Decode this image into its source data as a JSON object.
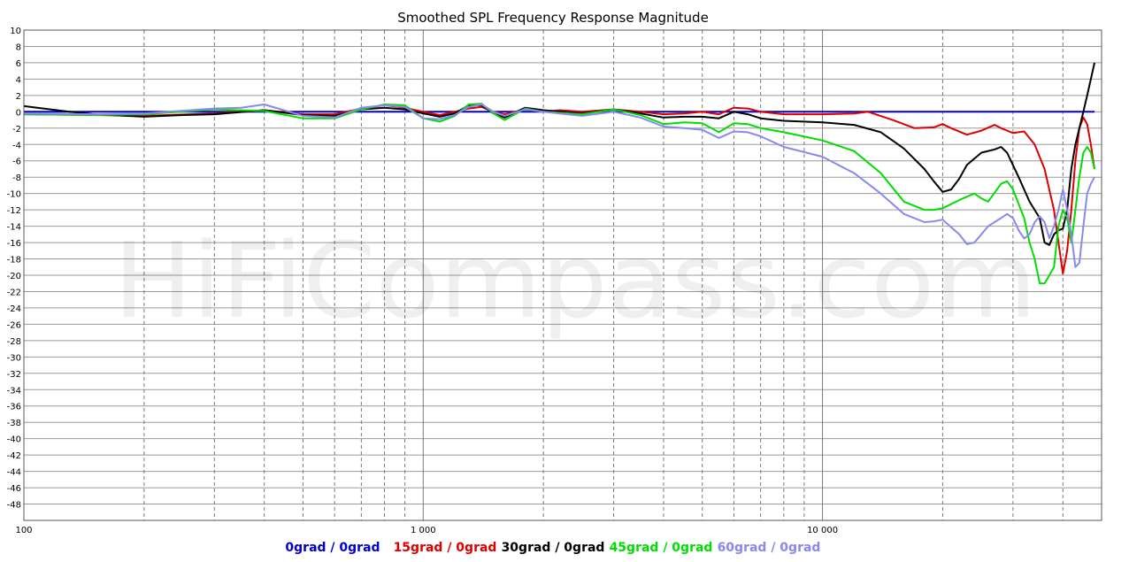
{
  "chart_data": {
    "type": "line",
    "title": "Smoothed SPL Frequency Response Magnitude",
    "watermark": "HiFiCompass.com",
    "x_scale": "log",
    "xlim": [
      100,
      50000
    ],
    "ylim": [
      -50,
      10
    ],
    "ytick_values": [
      10,
      8,
      6,
      4,
      2,
      0,
      -2,
      -4,
      -6,
      -8,
      -10,
      -12,
      -14,
      -16,
      -18,
      -20,
      -22,
      -24,
      -26,
      -28,
      -30,
      -32,
      -34,
      -36,
      -38,
      -40,
      -42,
      -44,
      -46,
      -48
    ],
    "ytick_labels": [
      "10",
      "8",
      "6",
      "4",
      "2",
      "0",
      "-2",
      "-4",
      "-6",
      "-8",
      "-10",
      "-12",
      "-14",
      "-16",
      "-18",
      "-20",
      "-22",
      "-24",
      "-26",
      "-28",
      "-30",
      "-32",
      "-34",
      "-36",
      "-38",
      "-40",
      "-42",
      "-44",
      "-46",
      "-48"
    ],
    "xtick_major": [
      {
        "value": 100,
        "label": "100"
      },
      {
        "value": 1000,
        "label": "1 000"
      },
      {
        "value": 10000,
        "label": "10 000"
      }
    ],
    "grid": true,
    "legend_position": "bottom",
    "series": [
      {
        "name": "0grad / 0grad",
        "color": "#0000cc",
        "points": [
          [
            100,
            0
          ],
          [
            48000,
            0
          ]
        ]
      },
      {
        "name": "15grad / 0grad",
        "color": "#dd0000",
        "points": [
          [
            100,
            -0.3
          ],
          [
            150,
            -0.4
          ],
          [
            200,
            -0.5
          ],
          [
            300,
            -0.2
          ],
          [
            400,
            0.2
          ],
          [
            500,
            -0.3
          ],
          [
            600,
            -0.3
          ],
          [
            700,
            0.4
          ],
          [
            800,
            0.8
          ],
          [
            900,
            0.5
          ],
          [
            1000,
            0
          ],
          [
            1100,
            -0.4
          ],
          [
            1200,
            0
          ],
          [
            1300,
            0.4
          ],
          [
            1400,
            0.6
          ],
          [
            1500,
            0
          ],
          [
            1600,
            -0.3
          ],
          [
            1800,
            0.3
          ],
          [
            2000,
            0
          ],
          [
            2200,
            0.2
          ],
          [
            2500,
            0
          ],
          [
            3000,
            0.3
          ],
          [
            3500,
            0
          ],
          [
            4000,
            -0.3
          ],
          [
            4500,
            -0.2
          ],
          [
            5000,
            0
          ],
          [
            5500,
            -0.3
          ],
          [
            6000,
            0.5
          ],
          [
            6500,
            0.4
          ],
          [
            7000,
            0
          ],
          [
            8000,
            -0.3
          ],
          [
            10000,
            -0.3
          ],
          [
            12000,
            -0.2
          ],
          [
            13000,
            0
          ],
          [
            15000,
            -1
          ],
          [
            17000,
            -2
          ],
          [
            19000,
            -1.9
          ],
          [
            20000,
            -1.5
          ],
          [
            21000,
            -2
          ],
          [
            23000,
            -2.8
          ],
          [
            25000,
            -2.3
          ],
          [
            27000,
            -1.6
          ],
          [
            28000,
            -2
          ],
          [
            30000,
            -2.6
          ],
          [
            32000,
            -2.4
          ],
          [
            34000,
            -4
          ],
          [
            36000,
            -7
          ],
          [
            38000,
            -12
          ],
          [
            39000,
            -16
          ],
          [
            40000,
            -19.8
          ],
          [
            41000,
            -17
          ],
          [
            42000,
            -12
          ],
          [
            43000,
            -6
          ],
          [
            44000,
            -2
          ],
          [
            45000,
            -0.7
          ],
          [
            46000,
            -1.5
          ],
          [
            47000,
            -4
          ],
          [
            48000,
            -7
          ]
        ]
      },
      {
        "name": "30grad / 0grad",
        "color": "#000000",
        "points": [
          [
            100,
            0.7
          ],
          [
            130,
            0
          ],
          [
            150,
            -0.3
          ],
          [
            200,
            -0.6
          ],
          [
            250,
            -0.4
          ],
          [
            300,
            -0.3
          ],
          [
            400,
            0.2
          ],
          [
            500,
            -0.4
          ],
          [
            600,
            -0.5
          ],
          [
            700,
            0.3
          ],
          [
            800,
            0.5
          ],
          [
            900,
            0.3
          ],
          [
            1000,
            -0.2
          ],
          [
            1100,
            -0.6
          ],
          [
            1200,
            -0.2
          ],
          [
            1300,
            0.8
          ],
          [
            1400,
            0.8
          ],
          [
            1500,
            -0.2
          ],
          [
            1600,
            -0.7
          ],
          [
            1800,
            0.5
          ],
          [
            2000,
            0.2
          ],
          [
            2500,
            -0.2
          ],
          [
            3000,
            0.3
          ],
          [
            3500,
            -0.2
          ],
          [
            4000,
            -0.7
          ],
          [
            4500,
            -0.6
          ],
          [
            5000,
            -0.6
          ],
          [
            5500,
            -0.8
          ],
          [
            6000,
            0
          ],
          [
            6500,
            -0.3
          ],
          [
            7000,
            -0.8
          ],
          [
            8000,
            -1.1
          ],
          [
            10000,
            -1.3
          ],
          [
            12000,
            -1.6
          ],
          [
            14000,
            -2.5
          ],
          [
            16000,
            -4.5
          ],
          [
            18000,
            -7
          ],
          [
            19000,
            -8.5
          ],
          [
            20000,
            -9.8
          ],
          [
            21000,
            -9.5
          ],
          [
            22000,
            -8.2
          ],
          [
            23000,
            -6.5
          ],
          [
            25000,
            -5
          ],
          [
            27000,
            -4.6
          ],
          [
            28000,
            -4.3
          ],
          [
            29000,
            -5
          ],
          [
            31000,
            -8
          ],
          [
            33000,
            -11
          ],
          [
            35000,
            -13
          ],
          [
            36000,
            -16
          ],
          [
            37000,
            -16.3
          ],
          [
            38000,
            -15
          ],
          [
            39000,
            -14.5
          ],
          [
            40000,
            -14.3
          ],
          [
            41000,
            -12
          ],
          [
            42000,
            -7
          ],
          [
            43000,
            -4
          ],
          [
            44000,
            -2
          ],
          [
            45000,
            0
          ],
          [
            46000,
            2
          ],
          [
            47000,
            4
          ],
          [
            48000,
            6
          ]
        ]
      },
      {
        "name": "45grad / 0grad",
        "color": "#00dd00",
        "points": [
          [
            100,
            -0.3
          ],
          [
            150,
            -0.4
          ],
          [
            200,
            -0.3
          ],
          [
            300,
            0.3
          ],
          [
            400,
            0.1
          ],
          [
            500,
            -0.8
          ],
          [
            600,
            -0.8
          ],
          [
            700,
            0.3
          ],
          [
            800,
            0.9
          ],
          [
            900,
            0.8
          ],
          [
            1000,
            -0.8
          ],
          [
            1100,
            -1.2
          ],
          [
            1200,
            -0.5
          ],
          [
            1300,
            0.9
          ],
          [
            1400,
            1
          ],
          [
            1500,
            -0.2
          ],
          [
            1600,
            -1
          ],
          [
            1800,
            0.4
          ],
          [
            2000,
            0
          ],
          [
            2500,
            -0.3
          ],
          [
            3000,
            0.3
          ],
          [
            3500,
            -0.4
          ],
          [
            4000,
            -1.5
          ],
          [
            4500,
            -1.3
          ],
          [
            5000,
            -1.4
          ],
          [
            5500,
            -2.5
          ],
          [
            6000,
            -1.4
          ],
          [
            6500,
            -1.5
          ],
          [
            7000,
            -2
          ],
          [
            8000,
            -2.5
          ],
          [
            10000,
            -3.5
          ],
          [
            12000,
            -4.8
          ],
          [
            14000,
            -7.5
          ],
          [
            16000,
            -11
          ],
          [
            18000,
            -12
          ],
          [
            19000,
            -12
          ],
          [
            20000,
            -11.8
          ],
          [
            22000,
            -10.8
          ],
          [
            24000,
            -10
          ],
          [
            25000,
            -10.6
          ],
          [
            26000,
            -11
          ],
          [
            28000,
            -8.8
          ],
          [
            29000,
            -8.5
          ],
          [
            30000,
            -9.5
          ],
          [
            32000,
            -13
          ],
          [
            33000,
            -16
          ],
          [
            34000,
            -18
          ],
          [
            35000,
            -21
          ],
          [
            36000,
            -21
          ],
          [
            37000,
            -20
          ],
          [
            38000,
            -19
          ],
          [
            39000,
            -14
          ],
          [
            40000,
            -12
          ],
          [
            41000,
            -13
          ],
          [
            42000,
            -16
          ],
          [
            43000,
            -12
          ],
          [
            44000,
            -8
          ],
          [
            45000,
            -5
          ],
          [
            46000,
            -4.3
          ],
          [
            47000,
            -5
          ],
          [
            48000,
            -7
          ]
        ]
      },
      {
        "name": "60grad / 0grad",
        "color": "#8888ee",
        "points": [
          [
            100,
            -0.2
          ],
          [
            150,
            -0.3
          ],
          [
            200,
            -0.2
          ],
          [
            300,
            0.4
          ],
          [
            350,
            0.5
          ],
          [
            400,
            0.9
          ],
          [
            500,
            -0.5
          ],
          [
            600,
            -0.7
          ],
          [
            700,
            0.5
          ],
          [
            800,
            0.8
          ],
          [
            900,
            0.6
          ],
          [
            1000,
            -0.8
          ],
          [
            1100,
            -0.9
          ],
          [
            1200,
            -0.4
          ],
          [
            1300,
            0.6
          ],
          [
            1400,
            0.9
          ],
          [
            1500,
            0
          ],
          [
            1600,
            -0.5
          ],
          [
            1800,
            0.3
          ],
          [
            2000,
            0
          ],
          [
            2500,
            -0.5
          ],
          [
            3000,
            0
          ],
          [
            3500,
            -0.7
          ],
          [
            4000,
            -1.8
          ],
          [
            4500,
            -2
          ],
          [
            5000,
            -2.2
          ],
          [
            5500,
            -3.2
          ],
          [
            6000,
            -2.4
          ],
          [
            6500,
            -2.5
          ],
          [
            7000,
            -3
          ],
          [
            8000,
            -4.3
          ],
          [
            10000,
            -5.5
          ],
          [
            12000,
            -7.5
          ],
          [
            14000,
            -10
          ],
          [
            16000,
            -12.5
          ],
          [
            18000,
            -13.5
          ],
          [
            19000,
            -13.4
          ],
          [
            20000,
            -13.2
          ],
          [
            22000,
            -15
          ],
          [
            23000,
            -16.2
          ],
          [
            24000,
            -16
          ],
          [
            25000,
            -15
          ],
          [
            26000,
            -14
          ],
          [
            28000,
            -13
          ],
          [
            29000,
            -12.5
          ],
          [
            30000,
            -13
          ],
          [
            31000,
            -14.5
          ],
          [
            32000,
            -15.5
          ],
          [
            33000,
            -15
          ],
          [
            34000,
            -13.5
          ],
          [
            35000,
            -12.8
          ],
          [
            36000,
            -13.5
          ],
          [
            37000,
            -15.5
          ],
          [
            38000,
            -14
          ],
          [
            39000,
            -12
          ],
          [
            40000,
            -9.5
          ],
          [
            41000,
            -12
          ],
          [
            42000,
            -15
          ],
          [
            43000,
            -19
          ],
          [
            44000,
            -18.5
          ],
          [
            45000,
            -14
          ],
          [
            46000,
            -10
          ],
          [
            47000,
            -8.8
          ],
          [
            48000,
            -8
          ]
        ]
      }
    ]
  }
}
